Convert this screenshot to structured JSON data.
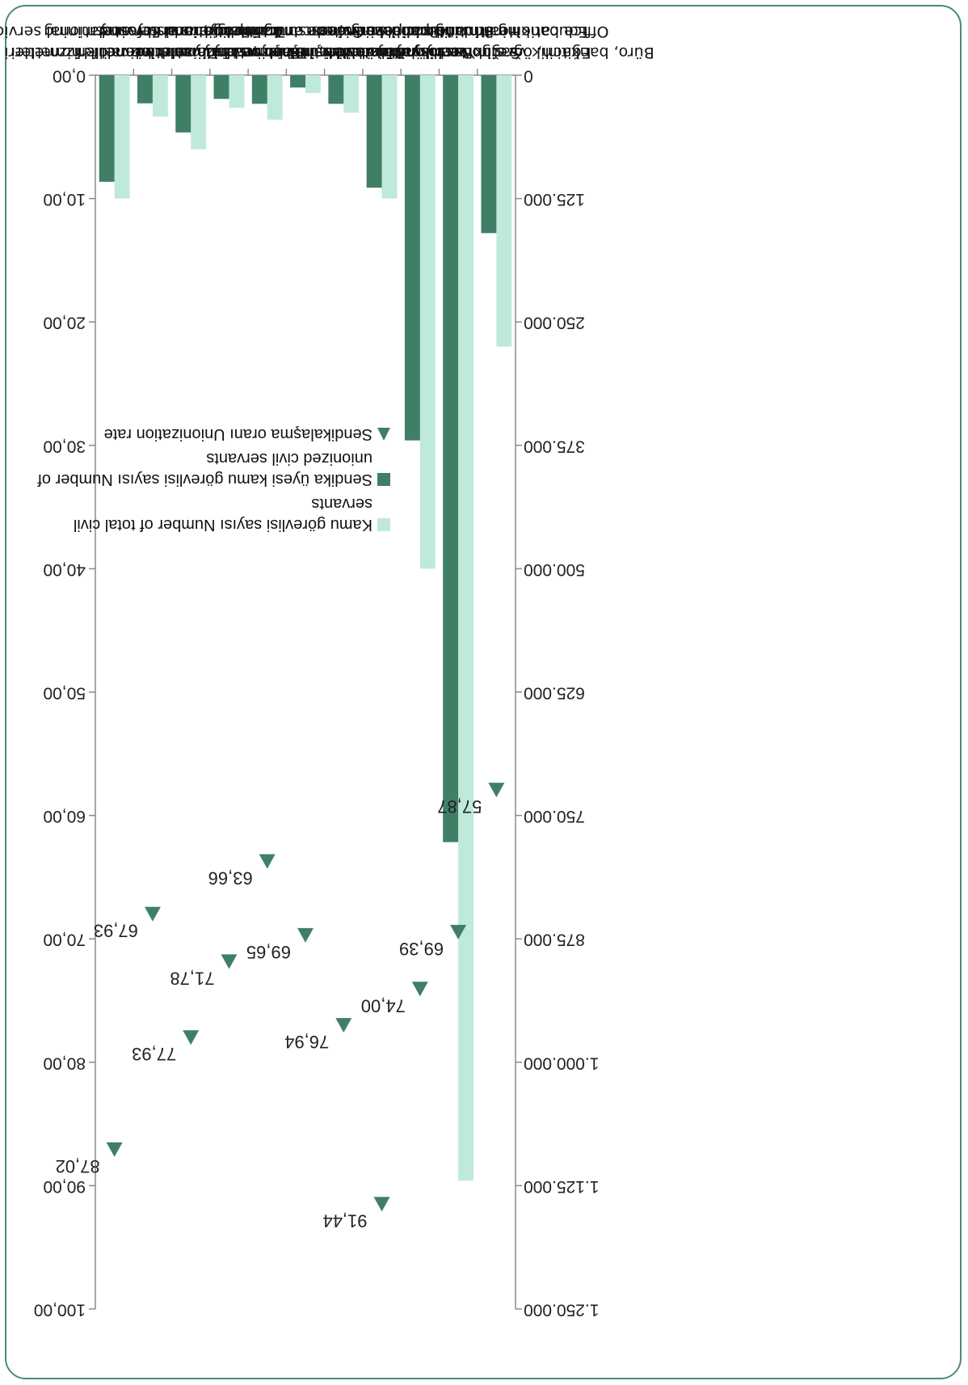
{
  "colors": {
    "total": "#bfeadb",
    "unionized": "#3f7f66",
    "rate": "#3f7f66",
    "frame": "#4e8a6e"
  },
  "chart_data": {
    "type": "bar",
    "title": "",
    "categories": [
      [
        "Büro, bankacilik ve sigortacilik hizmetleri",
        "Office banking and insurance"
      ],
      [
        "Eğitim, öğretim ve bilim hizmetleri",
        "Education instruction and science"
      ],
      [
        "Sağlık ve sosyal hizmetler",
        "Health and social services"
      ],
      [
        "Yerel yönetim hizmetleri",
        "Municipal services"
      ],
      [
        "Basın, yayın ve iletişim hizmetleri",
        "Printing publishing and communication"
      ],
      [
        "Kültür ve sanat hizmetleri",
        "Culture and art"
      ],
      [
        "Bayındırlık, inşaat ve köy hizmetleri",
        "Public works, construction and rural services"
      ],
      [
        "Ulaştırma hizmetleri",
        "Transportation"
      ],
      [
        "Tarım ve ormancılık hizmetleri",
        "Agriculture and Forestry"
      ],
      [
        "Enerji, sanayi ve madencilik hizmetleri",
        "Energy, industry and mining"
      ],
      [
        "Diyanet ve vakıf hizmetleri",
        "Religious and foundational services"
      ]
    ],
    "series": [
      {
        "name": "Kamu görevlisi sayısı  Number of total civil servants",
        "axis": "left",
        "values": [
          275000,
          1120000,
          500000,
          125000,
          38000,
          18000,
          45000,
          33000,
          75000,
          42000,
          125000
        ]
      },
      {
        "name": "Sendika üyesi kamu görevlisi sayısı Number of unionized civil servants",
        "axis": "left",
        "values": [
          160000,
          777000,
          370000,
          114000,
          29000,
          12500,
          29000,
          24000,
          58000,
          28500,
          108000
        ]
      },
      {
        "name": "Sendikalaşma oranı Unionization rate",
        "axis": "right",
        "type": "scatter",
        "values": [
          57.87,
          69.39,
          74.0,
          91.44,
          76.94,
          69.65,
          63.66,
          71.78,
          77.93,
          67.93,
          87.02
        ],
        "labels": [
          "57,87",
          "69,39",
          "74,00",
          "91,44",
          "76,94",
          "69,65",
          "63,66",
          "71,78",
          "77,93",
          "67,93",
          "87,02"
        ]
      }
    ],
    "left_axis": {
      "ylim": [
        0,
        1250000
      ],
      "ticks": [
        "0",
        "125.000",
        "250.000",
        "375.000",
        "500.000",
        "625.000",
        "750.000",
        "875.000",
        "1.000.000",
        "1.125.000",
        "1.250.000"
      ]
    },
    "right_axis": {
      "ylim": [
        0,
        100
      ],
      "ticks": [
        "0,00",
        "10,00",
        "20,00",
        "30,00",
        "40,00",
        "50,00",
        "60,00",
        "70,00",
        "80,00",
        "90,00",
        "100,00"
      ]
    },
    "legend": [
      {
        "text": "Kamu görevlisi sayısı  Number of total civil servants",
        "marker": "square",
        "color": "#bfeadb"
      },
      {
        "text": "Sendika üyesi kamu görevlisi sayısı Number of unionized civil servants",
        "marker": "square",
        "color": "#3f7f66"
      },
      {
        "text": "Sendikalaşma oranı Unionization rate",
        "marker": "triangle",
        "color": "#3f7f66"
      }
    ],
    "legend_position": "middle",
    "grid": false,
    "orientation": "rotated 180 degrees"
  }
}
